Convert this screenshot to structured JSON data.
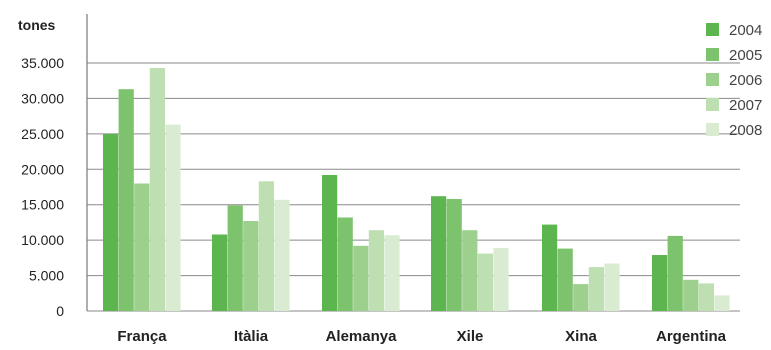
{
  "chart_data": {
    "type": "bar",
    "unit_label": "tones",
    "categories": [
      "França",
      "Itàlia",
      "Alemanya",
      "Xile",
      "Xina",
      "Argentina"
    ],
    "series": [
      {
        "name": "2004",
        "color": "#5cb54f",
        "values": [
          25000,
          10800,
          19200,
          16200,
          12200,
          7900
        ]
      },
      {
        "name": "2005",
        "color": "#7dc26c",
        "values": [
          31300,
          14900,
          13200,
          15800,
          8800,
          10600
        ]
      },
      {
        "name": "2006",
        "color": "#9dcf8d",
        "values": [
          18000,
          12700,
          9200,
          11400,
          3800,
          4400
        ]
      },
      {
        "name": "2007",
        "color": "#bddfb1",
        "values": [
          34300,
          18300,
          11400,
          8100,
          6200,
          3900
        ]
      },
      {
        "name": "2008",
        "color": "#d9ecd1",
        "values": [
          26300,
          15700,
          10700,
          8900,
          6700,
          2200
        ]
      }
    ],
    "yticks": [
      "0",
      "5.000",
      "10.000",
      "15.000",
      "20.000",
      "25.000",
      "30.000",
      "35.000"
    ],
    "ytick_values": [
      0,
      5000,
      10000,
      15000,
      20000,
      25000,
      30000,
      35000
    ],
    "ylim": [
      0,
      36000
    ],
    "grid": true,
    "legend_position": "top-right"
  }
}
